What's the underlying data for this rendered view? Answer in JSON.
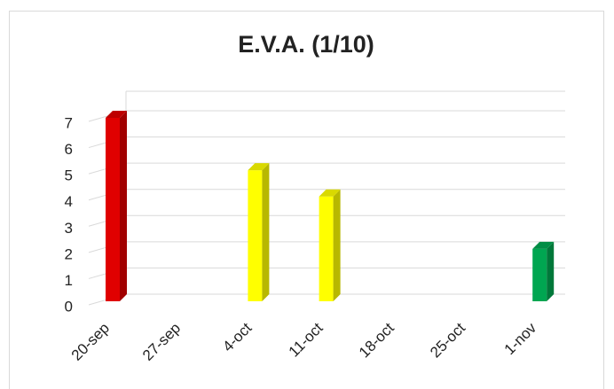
{
  "chart_data": {
    "type": "bar3d",
    "title": "E.V.A.  (1/10)",
    "categories": [
      "20-sep",
      "27-sep",
      "4-oct",
      "11-oct",
      "18-oct",
      "25-oct",
      "1-nov"
    ],
    "values": [
      7,
      null,
      5,
      4,
      null,
      null,
      2
    ],
    "colors": [
      "#e00000",
      null,
      "#ffff00",
      "#ffff00",
      null,
      null,
      "#00a651"
    ],
    "ylim": [
      0,
      7
    ],
    "yticks": [
      0,
      1,
      2,
      3,
      4,
      5,
      6,
      7
    ],
    "grid": true
  }
}
